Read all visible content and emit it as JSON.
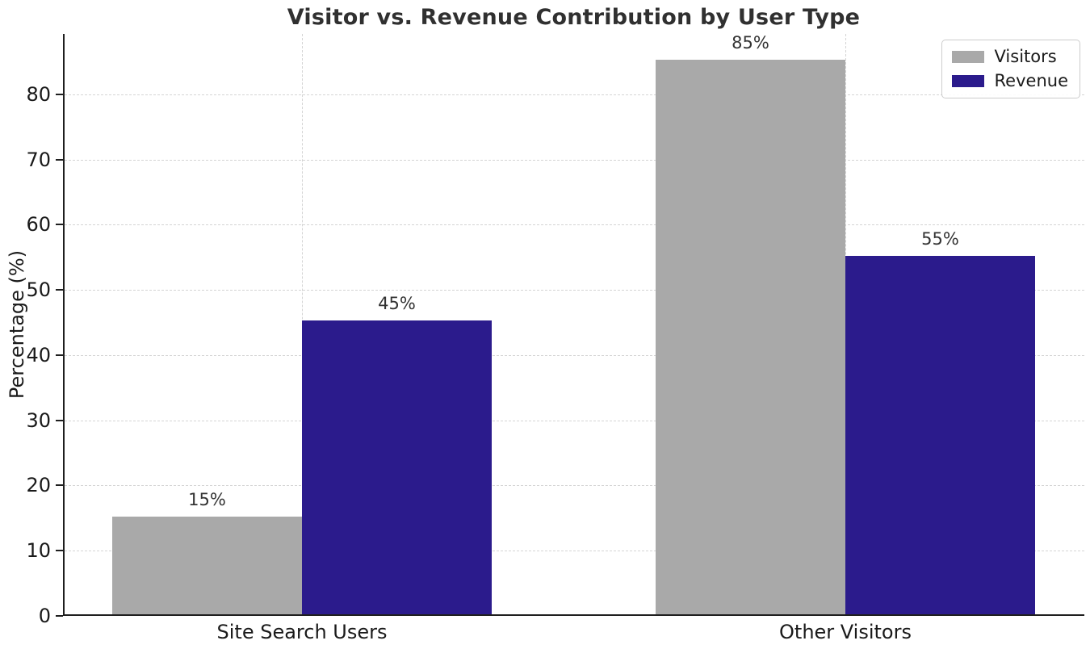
{
  "chart_data": {
    "type": "bar",
    "title": "Visitor vs. Revenue Contribution by User Type",
    "xlabel": "",
    "ylabel": "Percentage (%)",
    "categories": [
      "Site Search Users",
      "Other Visitors"
    ],
    "series": [
      {
        "name": "Visitors",
        "color": "#a9a9a9",
        "values": [
          15,
          85
        ],
        "labels": [
          "15%",
          "85%"
        ]
      },
      {
        "name": "Revenue",
        "color": "#2b1b8c",
        "values": [
          45,
          55
        ],
        "labels": [
          "45%",
          "55%"
        ]
      }
    ],
    "yticks": [
      0,
      10,
      20,
      30,
      40,
      50,
      60,
      70,
      80
    ],
    "ylim": [
      0,
      89.25
    ],
    "grid": true,
    "grid_style": "dashed",
    "legend_position": "upper right",
    "colors": {
      "grid": "#d4d4d4",
      "axis": "#1f1f1f",
      "title_text": "#303030",
      "tick_text": "#1a1a1a",
      "bar_label_text": "#333333"
    }
  }
}
